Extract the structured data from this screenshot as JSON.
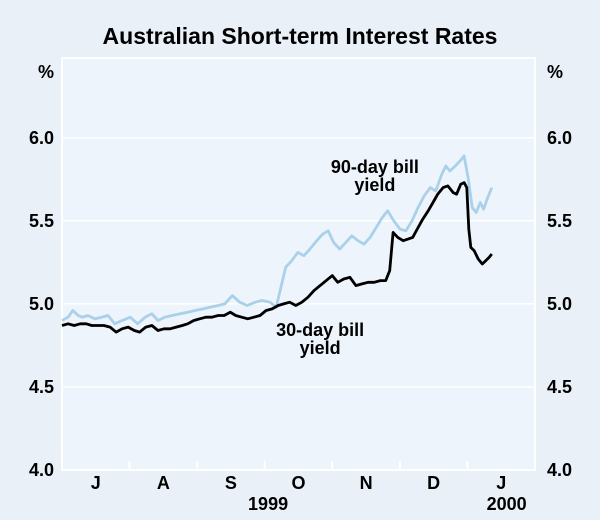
{
  "title": "Australian Short-term Interest Rates",
  "axes": {
    "unit": "%",
    "left_tick_labels": [
      "6.0",
      "5.5",
      "5.0",
      "4.5",
      "4.0"
    ],
    "right_tick_labels": [
      "6.0",
      "5.5",
      "5.0",
      "4.5",
      "4.0"
    ]
  },
  "colors": {
    "background": "#e9f0f8",
    "plot_background": "#eef4fb",
    "grid": "#ffffff",
    "frame": "#ffffff",
    "line_90_day": "#a9d1ea",
    "line_30_day": "#000000",
    "text": "#000000"
  },
  "chart_data": {
    "type": "line",
    "title": "Australian Short-term Interest Rates",
    "ylabel": "%",
    "ylim": [
      4.0,
      6.48
    ],
    "ytick_values": [
      6.0,
      5.5,
      5.0,
      4.5,
      4.0
    ],
    "ytick_labels": [
      "6.0",
      "5.5",
      "5.0",
      "4.5",
      "4.0"
    ],
    "grid": "horizontal white gridlines, white frame, white month ticks",
    "legend": "in-plot text labels",
    "x_domain_months": 7,
    "month_tick_labels": [
      "J",
      "A",
      "S",
      "O",
      "N",
      "D",
      "J"
    ],
    "months_full": [
      "Jul 1999",
      "Aug 1999",
      "Sep 1999",
      "Oct 1999",
      "Nov 1999",
      "Dec 1999",
      "Jan 2000"
    ],
    "year_labels": [
      {
        "text": "1999",
        "t": 3.05
      },
      {
        "text": "2000",
        "t": 6.58
      }
    ],
    "x_unit_note": "t = months since 1 Jul 1999 (0=Jul start, 7=end of Jan 2000); data ends mid-January 2000",
    "series": [
      {
        "name": "90-day bill yield",
        "color": "#a9d1ea",
        "points": [
          [
            0.0,
            4.9
          ],
          [
            0.09,
            4.92
          ],
          [
            0.16,
            4.96
          ],
          [
            0.24,
            4.93
          ],
          [
            0.3,
            4.92
          ],
          [
            0.38,
            4.93
          ],
          [
            0.49,
            4.91
          ],
          [
            0.59,
            4.92
          ],
          [
            0.68,
            4.93
          ],
          [
            0.78,
            4.88
          ],
          [
            0.89,
            4.9
          ],
          [
            1.01,
            4.92
          ],
          [
            1.12,
            4.88
          ],
          [
            1.23,
            4.92
          ],
          [
            1.33,
            4.94
          ],
          [
            1.42,
            4.9
          ],
          [
            1.52,
            4.92
          ],
          [
            1.63,
            4.93
          ],
          [
            1.75,
            4.94
          ],
          [
            1.86,
            4.95
          ],
          [
            1.97,
            4.96
          ],
          [
            2.09,
            4.97
          ],
          [
            2.19,
            4.98
          ],
          [
            2.31,
            4.99
          ],
          [
            2.41,
            5.0
          ],
          [
            2.52,
            5.05
          ],
          [
            2.63,
            5.01
          ],
          [
            2.74,
            4.99
          ],
          [
            2.86,
            5.01
          ],
          [
            2.96,
            5.02
          ],
          [
            3.08,
            5.01
          ],
          [
            3.17,
            4.98
          ],
          [
            3.24,
            5.1
          ],
          [
            3.31,
            5.22
          ],
          [
            3.4,
            5.26
          ],
          [
            3.49,
            5.31
          ],
          [
            3.58,
            5.29
          ],
          [
            3.67,
            5.33
          ],
          [
            3.77,
            5.38
          ],
          [
            3.86,
            5.42
          ],
          [
            3.94,
            5.44
          ],
          [
            4.02,
            5.37
          ],
          [
            4.11,
            5.33
          ],
          [
            4.2,
            5.37
          ],
          [
            4.29,
            5.41
          ],
          [
            4.38,
            5.38
          ],
          [
            4.47,
            5.36
          ],
          [
            4.56,
            5.4
          ],
          [
            4.65,
            5.46
          ],
          [
            4.74,
            5.52
          ],
          [
            4.82,
            5.56
          ],
          [
            4.91,
            5.5
          ],
          [
            5.0,
            5.45
          ],
          [
            5.09,
            5.44
          ],
          [
            5.18,
            5.5
          ],
          [
            5.27,
            5.58
          ],
          [
            5.36,
            5.65
          ],
          [
            5.45,
            5.7
          ],
          [
            5.53,
            5.68
          ],
          [
            5.62,
            5.78
          ],
          [
            5.68,
            5.83
          ],
          [
            5.74,
            5.8
          ],
          [
            5.82,
            5.83
          ],
          [
            5.89,
            5.86
          ],
          [
            5.95,
            5.89
          ],
          [
            6.01,
            5.76
          ],
          [
            6.07,
            5.58
          ],
          [
            6.13,
            5.55
          ],
          [
            6.19,
            5.61
          ],
          [
            6.24,
            5.57
          ],
          [
            6.3,
            5.64
          ],
          [
            6.36,
            5.7
          ]
        ]
      },
      {
        "name": "30-day bill yield",
        "color": "#000000",
        "points": [
          [
            0.0,
            4.87
          ],
          [
            0.09,
            4.88
          ],
          [
            0.18,
            4.87
          ],
          [
            0.27,
            4.88
          ],
          [
            0.36,
            4.88
          ],
          [
            0.44,
            4.87
          ],
          [
            0.53,
            4.87
          ],
          [
            0.62,
            4.87
          ],
          [
            0.71,
            4.86
          ],
          [
            0.8,
            4.83
          ],
          [
            0.89,
            4.85
          ],
          [
            0.98,
            4.86
          ],
          [
            1.07,
            4.84
          ],
          [
            1.15,
            4.83
          ],
          [
            1.24,
            4.86
          ],
          [
            1.33,
            4.87
          ],
          [
            1.42,
            4.84
          ],
          [
            1.51,
            4.85
          ],
          [
            1.6,
            4.85
          ],
          [
            1.69,
            4.86
          ],
          [
            1.78,
            4.87
          ],
          [
            1.86,
            4.88
          ],
          [
            1.95,
            4.9
          ],
          [
            2.04,
            4.91
          ],
          [
            2.13,
            4.92
          ],
          [
            2.22,
            4.92
          ],
          [
            2.31,
            4.93
          ],
          [
            2.4,
            4.93
          ],
          [
            2.49,
            4.95
          ],
          [
            2.57,
            4.93
          ],
          [
            2.66,
            4.92
          ],
          [
            2.75,
            4.91
          ],
          [
            2.84,
            4.92
          ],
          [
            2.93,
            4.93
          ],
          [
            3.02,
            4.96
          ],
          [
            3.11,
            4.97
          ],
          [
            3.2,
            4.99
          ],
          [
            3.28,
            5.0
          ],
          [
            3.37,
            5.01
          ],
          [
            3.46,
            4.99
          ],
          [
            3.55,
            5.01
          ],
          [
            3.64,
            5.04
          ],
          [
            3.73,
            5.08
          ],
          [
            3.82,
            5.11
          ],
          [
            3.91,
            5.14
          ],
          [
            4.0,
            5.17
          ],
          [
            4.08,
            5.13
          ],
          [
            4.17,
            5.15
          ],
          [
            4.26,
            5.16
          ],
          [
            4.35,
            5.11
          ],
          [
            4.44,
            5.12
          ],
          [
            4.53,
            5.13
          ],
          [
            4.62,
            5.13
          ],
          [
            4.71,
            5.14
          ],
          [
            4.79,
            5.14
          ],
          [
            4.85,
            5.2
          ],
          [
            4.9,
            5.43
          ],
          [
            4.97,
            5.4
          ],
          [
            5.05,
            5.38
          ],
          [
            5.12,
            5.39
          ],
          [
            5.19,
            5.4
          ],
          [
            5.27,
            5.46
          ],
          [
            5.34,
            5.51
          ],
          [
            5.42,
            5.56
          ],
          [
            5.49,
            5.61
          ],
          [
            5.56,
            5.66
          ],
          [
            5.64,
            5.7
          ],
          [
            5.71,
            5.71
          ],
          [
            5.79,
            5.67
          ],
          [
            5.84,
            5.66
          ],
          [
            5.9,
            5.72
          ],
          [
            5.95,
            5.73
          ],
          [
            5.99,
            5.7
          ],
          [
            6.02,
            5.45
          ],
          [
            6.05,
            5.34
          ],
          [
            6.1,
            5.32
          ],
          [
            6.16,
            5.27
          ],
          [
            6.22,
            5.24
          ],
          [
            6.27,
            5.26
          ],
          [
            6.32,
            5.28
          ],
          [
            6.36,
            5.3
          ]
        ]
      }
    ],
    "annotations": [
      {
        "lines": [
          "90-day bill",
          "yield"
        ],
        "t": 4.63,
        "value": 5.77,
        "series": "90-day bill yield"
      },
      {
        "lines": [
          "30-day bill",
          "yield"
        ],
        "t": 3.82,
        "value": 4.79,
        "series": "30-day bill yield"
      }
    ]
  }
}
